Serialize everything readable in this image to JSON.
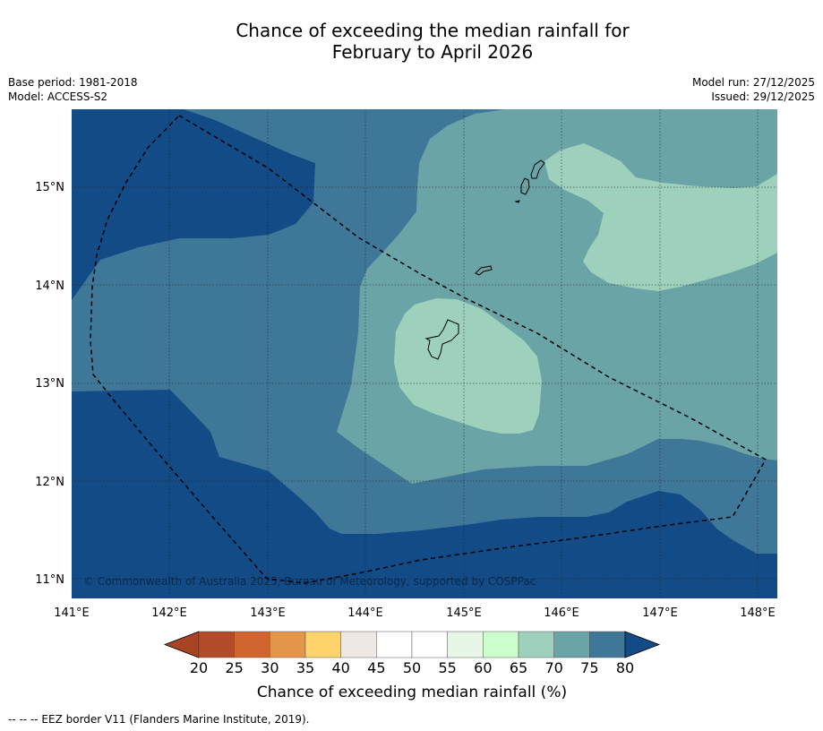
{
  "title": {
    "line1": "Chance of exceeding the median rainfall for",
    "line2": "February to April 2026"
  },
  "meta_left": {
    "base_period": "Base period: 1981-2018",
    "model": "Model: ACCESS-S2"
  },
  "meta_right": {
    "model_run": "Model run: 27/12/2025",
    "issued": "Issued: 29/12/2025"
  },
  "map": {
    "lon_range": [
      141.0,
      148.2
    ],
    "lat_range": [
      10.8,
      15.8
    ],
    "lon_ticks": [
      "141°E",
      "142°E",
      "143°E",
      "144°E",
      "145°E",
      "146°E",
      "147°E",
      "148°E"
    ],
    "lat_ticks": [
      "15°N",
      "14°N",
      "13°N",
      "12°N",
      "11°N"
    ],
    "copyright": "© Commonwealth of Australia 2025, Bureau of Meteorology, supported by COSPPac",
    "zone_colors": {
      "75-80+": "#134b87",
      "70-75": "#3f7799",
      "65-70": "#6ba4a7",
      "60-65": "#9dd1bb"
    }
  },
  "colorbar": {
    "labels": [
      "20",
      "25",
      "30",
      "35",
      "40",
      "45",
      "50",
      "55",
      "60",
      "65",
      "70",
      "75",
      "80"
    ],
    "colors": [
      "#b14b28",
      "#d0652f",
      "#e3964a",
      "#ffd36b",
      "#ede8e4",
      "#ffffff",
      "#ffffff",
      "#e7f7e7",
      "#ccffcc",
      "#9dd1bb",
      "#6ba4a7",
      "#3f7799"
    ],
    "under_color": "#a84425",
    "over_color": "#134b87",
    "title": "Chance of exceeding median rainfall (%)"
  },
  "footnote": "--  --  -- EEZ border V11 (Flanders Marine Institute, 2019)."
}
